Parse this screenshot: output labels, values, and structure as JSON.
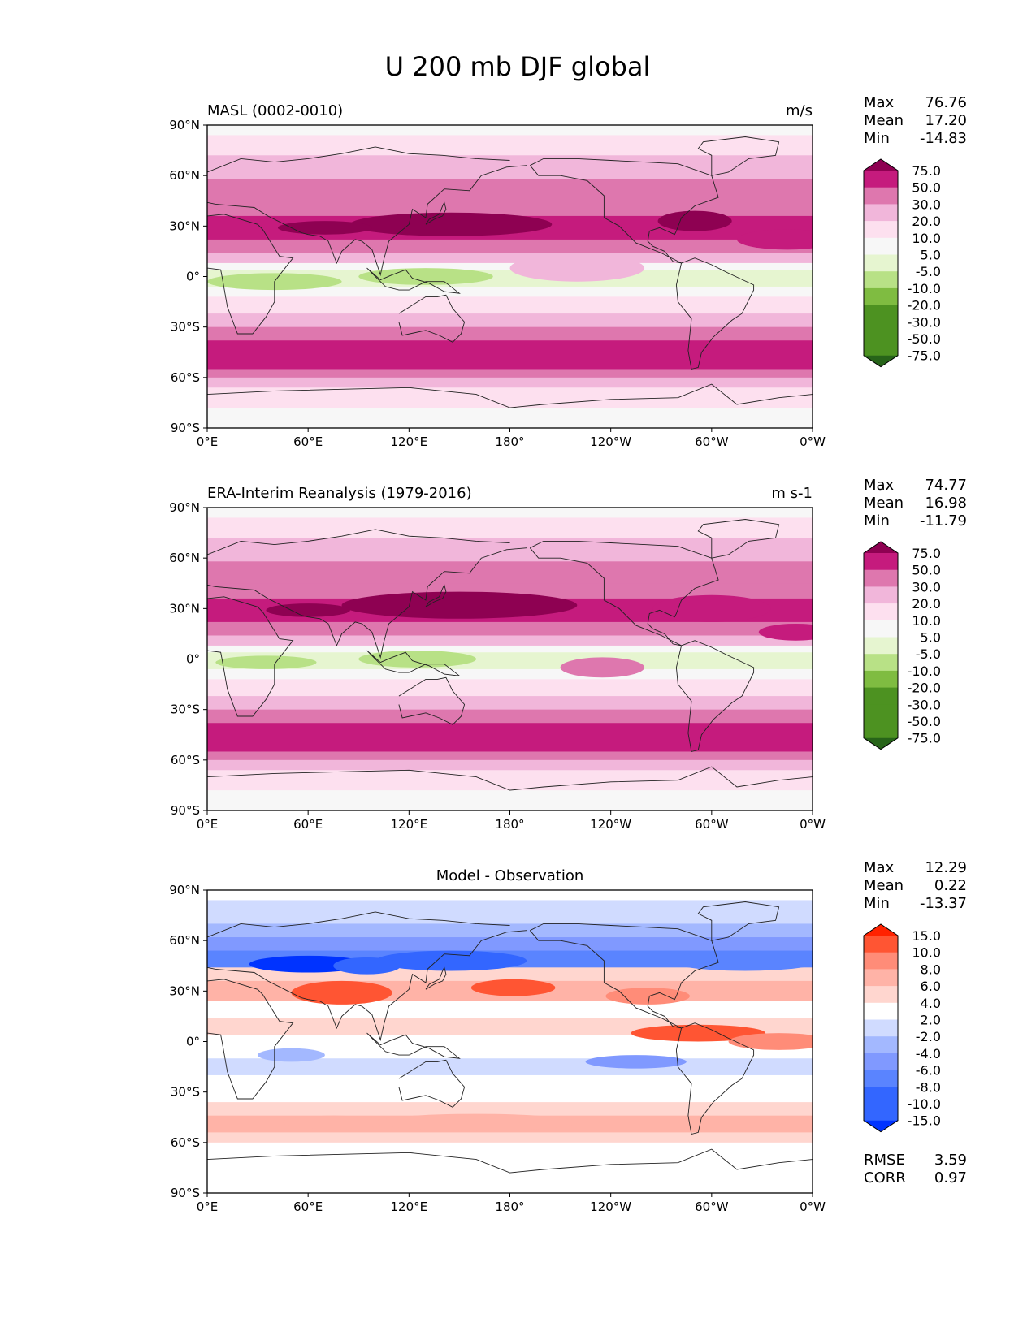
{
  "title": "U 200 mb DJF global",
  "axis": {
    "lat_labels": [
      "90°N",
      "60°N",
      "30°N",
      "0°",
      "30°S",
      "60°S",
      "90°S"
    ],
    "lon_labels": [
      "0°E",
      "60°E",
      "120°E",
      "180°",
      "120°W",
      "60°W",
      "0°W"
    ],
    "lat_range": [
      -90,
      90
    ],
    "lon_range": [
      0,
      360
    ]
  },
  "colors": {
    "abs_levels": [
      "#276419",
      "#4d9221",
      "#7fbc41",
      "#b8e186",
      "#e6f5d0",
      "#f7f7f7",
      "#fde0ef",
      "#f1b6da",
      "#de77ae",
      "#c51b7d",
      "#8e0152"
    ],
    "diff_levels": [
      "#0033ff",
      "#3366ff",
      "#5a84ff",
      "#8099ff",
      "#a3b8ff",
      "#d0dbff",
      "#ffffff",
      "#ffd6cf",
      "#ffb3a7",
      "#ff8c78",
      "#ff5533",
      "#ff2200"
    ]
  },
  "panels": [
    {
      "name": "model",
      "left_title": "MASL (0002-0010)",
      "right_title": "m/s",
      "center_title": "",
      "stats": [
        {
          "label": "Max",
          "value": "76.76"
        },
        {
          "label": "Mean",
          "value": "17.20"
        },
        {
          "label": "Min",
          "value": "-14.83"
        }
      ],
      "colorbar": {
        "scheme": "abs",
        "ticks": [
          "75.0",
          "50.0",
          "30.0",
          "20.0",
          "10.0",
          "5.0",
          "-5.0",
          "-10.0",
          "-20.0",
          "-30.0",
          "-50.0",
          "-75.0"
        ]
      },
      "extra_stats": []
    },
    {
      "name": "obs",
      "left_title": "ERA-Interim Reanalysis (1979-2016)",
      "right_title": "m s-1",
      "center_title": "",
      "stats": [
        {
          "label": "Max",
          "value": "74.77"
        },
        {
          "label": "Mean",
          "value": "16.98"
        },
        {
          "label": "Min",
          "value": "-11.79"
        }
      ],
      "colorbar": {
        "scheme": "abs",
        "ticks": [
          "75.0",
          "50.0",
          "30.0",
          "20.0",
          "10.0",
          "5.0",
          "-5.0",
          "-10.0",
          "-20.0",
          "-30.0",
          "-50.0",
          "-75.0"
        ]
      },
      "extra_stats": []
    },
    {
      "name": "diff",
      "left_title": "",
      "right_title": "",
      "center_title": "Model - Observation",
      "stats": [
        {
          "label": "Max",
          "value": "12.29"
        },
        {
          "label": "Mean",
          "value": "0.22"
        },
        {
          "label": "Min",
          "value": "-13.37"
        }
      ],
      "colorbar": {
        "scheme": "diff",
        "ticks": [
          "15.0",
          "10.0",
          "8.0",
          "6.0",
          "4.0",
          "2.0",
          "-2.0",
          "-4.0",
          "-6.0",
          "-8.0",
          "-10.0",
          "-15.0"
        ]
      },
      "extra_stats": [
        {
          "label": "RMSE",
          "value": "3.59"
        },
        {
          "label": "CORR",
          "value": "0.97"
        }
      ]
    }
  ]
}
